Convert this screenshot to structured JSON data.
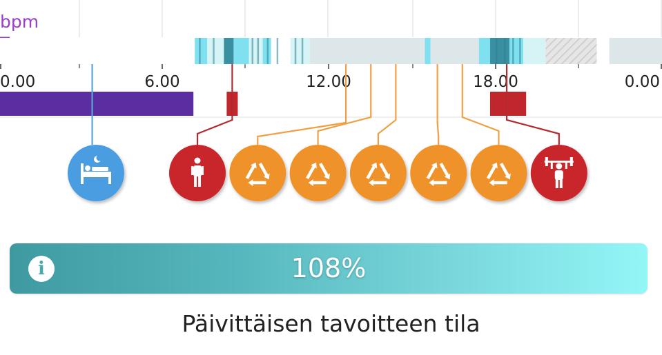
{
  "chart_header": {
    "unit_label": "bpm"
  },
  "timeline": {
    "tick_labels": [
      "0.00",
      "6.00",
      "12.00",
      "18.00",
      "0.00"
    ],
    "hr_segments": [
      {
        "start": 0.0,
        "end": 7.15,
        "kind": "white"
      },
      {
        "start": 7.15,
        "end": 7.6,
        "kind": "light"
      },
      {
        "start": 7.6,
        "end": 8.2,
        "kind": "pale"
      },
      {
        "start": 8.2,
        "end": 8.55,
        "kind": "dark"
      },
      {
        "start": 8.55,
        "end": 9.1,
        "kind": "light"
      },
      {
        "start": 9.1,
        "end": 9.6,
        "kind": "pale"
      },
      {
        "start": 9.6,
        "end": 9.9,
        "kind": "light"
      },
      {
        "start": 9.9,
        "end": 10.6,
        "kind": "white"
      },
      {
        "start": 10.6,
        "end": 11.3,
        "kind": "pale"
      },
      {
        "start": 11.3,
        "end": 15.45,
        "kind": "grey"
      },
      {
        "start": 15.45,
        "end": 15.65,
        "kind": "light"
      },
      {
        "start": 15.65,
        "end": 17.4,
        "kind": "grey"
      },
      {
        "start": 17.4,
        "end": 17.8,
        "kind": "light"
      },
      {
        "start": 17.8,
        "end": 18.5,
        "kind": "dark"
      },
      {
        "start": 18.5,
        "end": 19.0,
        "kind": "light"
      },
      {
        "start": 19.0,
        "end": 19.8,
        "kind": "pale"
      },
      {
        "start": 19.8,
        "end": 21.65,
        "kind": "hatched"
      },
      {
        "start": 21.65,
        "end": 22.1,
        "kind": "white"
      },
      {
        "start": 22.1,
        "end": 24.0,
        "kind": "grey"
      }
    ],
    "activity_blocks": [
      {
        "start": 0.0,
        "end": 7.1,
        "type": "sleep",
        "color": "#5a2ea0"
      },
      {
        "start": 8.3,
        "end": 8.7,
        "type": "activity",
        "color": "#c0272d"
      },
      {
        "start": 17.8,
        "end": 19.1,
        "type": "activity",
        "color": "#c0272d"
      }
    ],
    "markers": [
      {
        "icon": "sleep-icon",
        "hour": 3.45,
        "color": "#4a9de0",
        "line_color": "#5ba3d9"
      },
      {
        "icon": "walking-person-icon",
        "hour": 8.5,
        "color": "#c8262c",
        "line_color": "#b22a30"
      },
      {
        "icon": "recovery-icon",
        "hour": 12.6,
        "color": "#f0922c",
        "line_color": "#f0a044"
      },
      {
        "icon": "recovery-icon",
        "hour": 13.5,
        "color": "#f0922c",
        "line_color": "#f0a044"
      },
      {
        "icon": "recovery-icon",
        "hour": 14.4,
        "color": "#f0922c",
        "line_color": "#f0a044"
      },
      {
        "icon": "recovery-icon",
        "hour": 15.9,
        "color": "#f0922c",
        "line_color": "#f0a044"
      },
      {
        "icon": "recovery-icon",
        "hour": 16.8,
        "color": "#f0922c",
        "line_color": "#f0a044"
      },
      {
        "icon": "weightlifting-icon",
        "hour": 18.4,
        "color": "#c8262c",
        "line_color": "#b22a30"
      }
    ]
  },
  "progress": {
    "value_text": "108%",
    "percent": 108
  },
  "caption": "Päivittäisen tavoitteen tila",
  "colors": {
    "unit_label": "#9b3fc4",
    "progress_start": "#3e9aa0",
    "progress_end": "#93f6f7"
  }
}
